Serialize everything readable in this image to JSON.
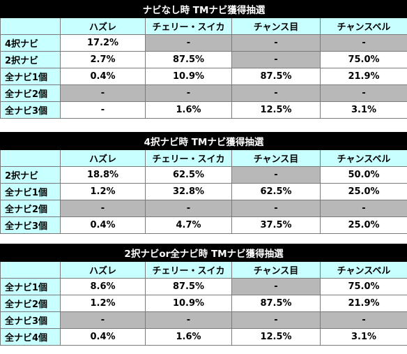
{
  "columns": [
    "",
    "ハズレ",
    "チェリー・スイカ",
    "チャンス目",
    "チャンスベル"
  ],
  "tables": [
    {
      "title": "ナビなし時 TMナビ獲得抽選",
      "rows": [
        {
          "label": "4択ナビ",
          "cells": [
            "17.2%",
            "-",
            "-",
            "-"
          ],
          "gray": [
            false,
            true,
            true,
            true
          ]
        },
        {
          "label": "2択ナビ",
          "cells": [
            "2.7%",
            "87.5%",
            "-",
            "75.0%"
          ],
          "gray": [
            false,
            false,
            true,
            false
          ]
        },
        {
          "label": "全ナビ1個",
          "cells": [
            "0.4%",
            "10.9%",
            "87.5%",
            "21.9%"
          ],
          "gray": [
            false,
            false,
            false,
            false
          ]
        },
        {
          "label": "全ナビ2個",
          "cells": [
            "-",
            "-",
            "-",
            "-"
          ],
          "gray": [
            true,
            true,
            true,
            true
          ]
        },
        {
          "label": "全ナビ3個",
          "cells": [
            "-",
            "1.6%",
            "12.5%",
            "3.1%"
          ],
          "gray": [
            false,
            false,
            false,
            false
          ]
        }
      ]
    },
    {
      "title": "4択ナビ時 TMナビ獲得抽選",
      "rows": [
        {
          "label": "2択ナビ",
          "cells": [
            "18.8%",
            "62.5%",
            "-",
            "50.0%"
          ],
          "gray": [
            false,
            false,
            true,
            false
          ]
        },
        {
          "label": "全ナビ1個",
          "cells": [
            "1.2%",
            "32.8%",
            "62.5%",
            "25.0%"
          ],
          "gray": [
            false,
            false,
            false,
            false
          ]
        },
        {
          "label": "全ナビ2個",
          "cells": [
            "-",
            "-",
            "-",
            "-"
          ],
          "gray": [
            true,
            true,
            true,
            true
          ]
        },
        {
          "label": "全ナビ3個",
          "cells": [
            "0.4%",
            "4.7%",
            "37.5%",
            "25.0%"
          ],
          "gray": [
            false,
            false,
            false,
            false
          ]
        }
      ]
    },
    {
      "title": "2択ナビor全ナビ時 TMナビ獲得抽選",
      "rows": [
        {
          "label": "全ナビ1個",
          "cells": [
            "8.6%",
            "87.5%",
            "-",
            "75.0%"
          ],
          "gray": [
            false,
            false,
            true,
            false
          ]
        },
        {
          "label": "全ナビ2個",
          "cells": [
            "1.2%",
            "10.9%",
            "87.5%",
            "21.9%"
          ],
          "gray": [
            false,
            false,
            false,
            false
          ]
        },
        {
          "label": "全ナビ3個",
          "cells": [
            "-",
            "-",
            "-",
            "-"
          ],
          "gray": [
            true,
            true,
            true,
            true
          ]
        },
        {
          "label": "全ナビ4個",
          "cells": [
            "0.4%",
            "1.6%",
            "12.5%",
            "3.1%"
          ],
          "gray": [
            false,
            false,
            false,
            false
          ]
        }
      ]
    }
  ],
  "colors": {
    "title_bg": "#000000",
    "header_bg": "#c8ffff",
    "gray_bg": "#b8b8b8"
  }
}
